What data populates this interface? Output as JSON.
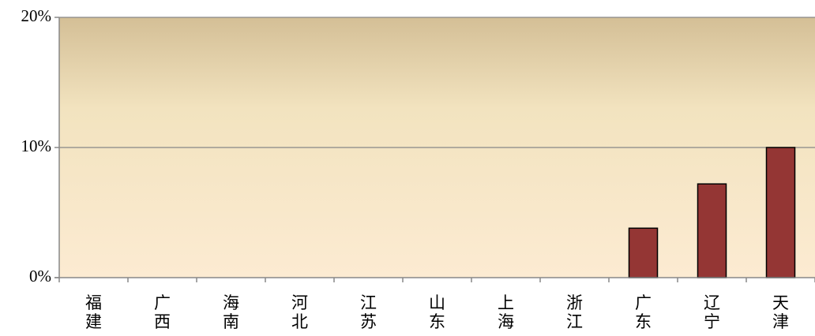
{
  "chart_data": {
    "type": "bar",
    "categories": [
      "福建",
      "广西",
      "海南",
      "河北",
      "江苏",
      "山东",
      "上海",
      "浙江",
      "广东",
      "辽宁",
      "天津"
    ],
    "values": [
      0,
      0,
      0,
      0,
      0,
      0,
      0,
      0,
      3.8,
      7.2,
      10.0
    ],
    "ylim": [
      0,
      20
    ],
    "yticks": [
      0,
      10,
      20
    ],
    "ytick_labels": [
      "0%",
      "10%",
      "20%"
    ],
    "title": "",
    "xlabel": "",
    "ylabel": "",
    "grid": true,
    "legend": "none"
  },
  "colors": {
    "bar_fill": "#943634",
    "bar_stroke": "#000000",
    "plot_bg_top": "#d4bf96",
    "plot_bg_bottom": "#fcebd2",
    "grid": "#888888",
    "axis": "#888888"
  }
}
